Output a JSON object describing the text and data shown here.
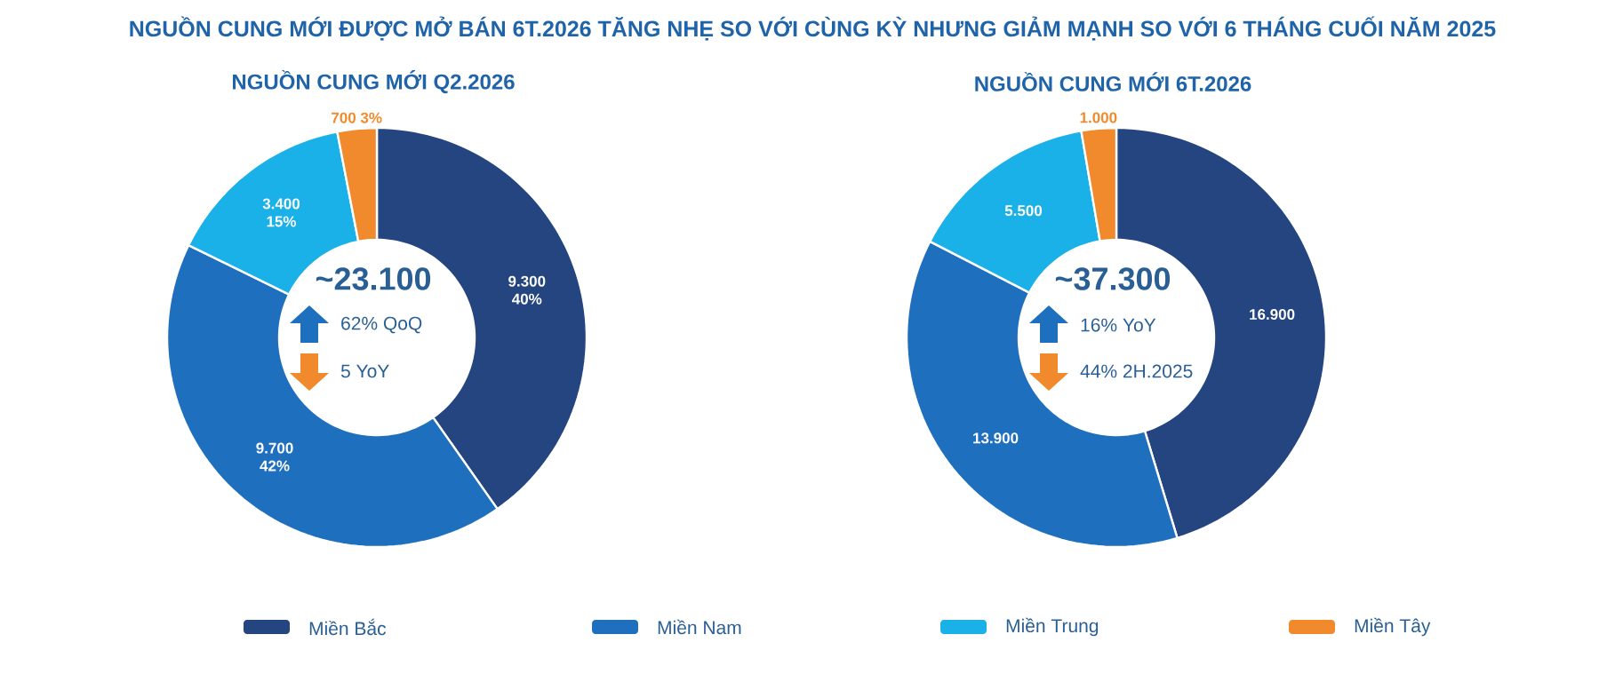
{
  "chart_data": [
    {
      "type": "donut",
      "title": "NGUỒN CUNG MỚI ĐƯỢC MỞ BÁN 6T.2026 TĂNG NHẸ SO VỚI CÙNG KỲ NHƯNG GIẢM MẠNH SO VỚI 6 THÁNG CUỐI NĂM 2025",
      "subtitle": "NGUỒN CUNG MỚI Q2.2026",
      "categories": [
        "Miền Bắc",
        "Miền Nam",
        "Miền Trung",
        "Miền Tây"
      ],
      "values": [
        9300,
        9700,
        3400,
        700
      ],
      "colors": [
        "#24457f",
        "#1f6fbf",
        "#1ab0e8",
        "#f08a2c"
      ],
      "value_labels": [
        "9.300 40%",
        "9.700 42%",
        "3.400 15%",
        "700 3%"
      ],
      "annotations": [
        "~23.100",
        "62% QoQ",
        "5 YoY"
      ],
      "legend": "bottom"
    },
    {
      "type": "donut",
      "subtitle": "NGUỒN CUNG MỚI 6T.2026",
      "categories": [
        null,
        null,
        null,
        null
      ],
      "values": [
        16900,
        13900,
        5500,
        1000
      ],
      "colors": [
        "#24457f",
        "#1f6fbf",
        "#1ab0e8",
        "#f08a2c"
      ],
      "value_labels": [
        "16.900",
        "13.900",
        "5.500",
        "1.000"
      ],
      "annotations": [
        "~37.300",
        "16% YoY",
        "44% 2H.2025"
      ]
    }
  ]
}
